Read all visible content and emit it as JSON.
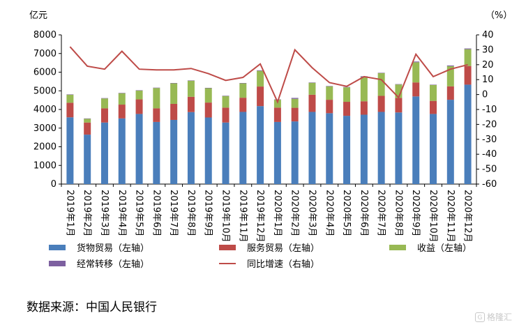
{
  "chart_data": {
    "type": "bar",
    "stacked": true,
    "categories": [
      "2019年1月",
      "2019年2月",
      "2019年3月",
      "2019年4月",
      "2019年5月",
      "2019年6月",
      "2019年7月",
      "2019年8月",
      "2019年9月",
      "2019年10月",
      "2019年11月",
      "2019年12月",
      "2020年1月",
      "2020年2月",
      "2020年3月",
      "2020年4月",
      "2020年5月",
      "2020年6月",
      "2020年7月",
      "2020年8月",
      "2020年9月",
      "2020年10月",
      "2020年11月",
      "2020年12月"
    ],
    "series": [
      {
        "name": "货物贸易（左轴）",
        "type": "bar",
        "axis": "left",
        "color": "#4a7ebb",
        "values": [
          3580,
          2650,
          3300,
          3520,
          3760,
          3330,
          3440,
          3860,
          3570,
          3300,
          3870,
          4180,
          3330,
          3360,
          3870,
          3800,
          3660,
          3720,
          3870,
          3840,
          4700,
          3760,
          4520,
          5330
        ]
      },
      {
        "name": "服务贸易（左轴）",
        "type": "bar",
        "axis": "left",
        "color": "#be4b48",
        "values": [
          780,
          650,
          760,
          740,
          780,
          730,
          860,
          820,
          800,
          800,
          760,
          1050,
          770,
          730,
          920,
          720,
          750,
          720,
          860,
          780,
          750,
          700,
          720,
          1000
        ]
      },
      {
        "name": "收益（左轴）",
        "type": "bar",
        "axis": "left",
        "color": "#98b954",
        "values": [
          430,
          200,
          530,
          610,
          470,
          1090,
          1100,
          860,
          770,
          620,
          770,
          840,
          420,
          480,
          640,
          720,
          780,
          1300,
          1220,
          720,
          1080,
          850,
          1080,
          900
        ]
      },
      {
        "name": "经常转移（左轴）",
        "type": "bar",
        "axis": "left",
        "color": "#7d60a0",
        "values": [
          20,
          20,
          20,
          20,
          20,
          20,
          20,
          20,
          20,
          20,
          20,
          30,
          20,
          50,
          20,
          20,
          20,
          40,
          20,
          20,
          40,
          20,
          40,
          40
        ]
      },
      {
        "name": "同比增速（右轴）",
        "type": "line",
        "axis": "right",
        "color": "#be4b48",
        "values": [
          32,
          19,
          17,
          29,
          17,
          16.5,
          16.5,
          17.5,
          14,
          9.5,
          11.5,
          20.5,
          -5,
          30,
          18,
          8,
          5.5,
          12,
          10,
          -2,
          27,
          12,
          17,
          20
        ]
      }
    ],
    "y_left": {
      "unit": "亿元",
      "ylim": [
        0,
        8000
      ],
      "ticks": [
        "0",
        "1000",
        "2000",
        "3000",
        "4000",
        "5000",
        "6000",
        "7000",
        "8000"
      ]
    },
    "y_right": {
      "unit": "（%）",
      "ylim": [
        -60,
        40
      ],
      "ticks": [
        "-60",
        "-50",
        "-40",
        "-30",
        "-20",
        "-10",
        "0",
        "10",
        "20",
        "30",
        "40"
      ]
    },
    "legend_placement": "bottom",
    "grid": false
  },
  "source_text": "数据来源：中国人民银行",
  "watermark_text": "格隆汇"
}
